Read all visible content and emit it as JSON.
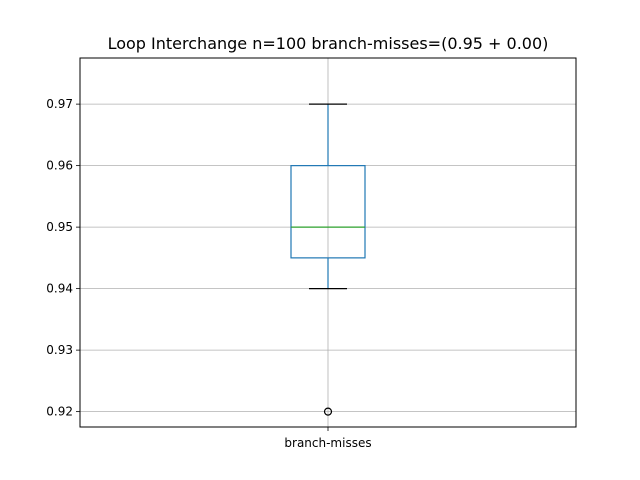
{
  "chart_data": {
    "type": "box",
    "title": "Loop Interchange n=100  branch-misses=(0.95 + 0.00)",
    "xlabel": "",
    "ylabel": "",
    "categories": [
      "branch-misses"
    ],
    "ylim": [
      0.9175,
      0.9775
    ],
    "yticks": [
      0.92,
      0.93,
      0.94,
      0.95,
      0.96,
      0.97
    ],
    "ytick_labels": [
      "0.92",
      "0.93",
      "0.94",
      "0.95",
      "0.96",
      "0.97"
    ],
    "grid": true,
    "legend": "none",
    "boxes": [
      {
        "name": "branch-misses",
        "whisker_low": 0.94,
        "q1": 0.945,
        "median": 0.95,
        "q3": 0.96,
        "whisker_high": 0.97,
        "outliers": [
          0.92
        ]
      }
    ],
    "colors": {
      "box": "#1f77b4",
      "median": "#2ca02c",
      "whisker_cap": "#000000",
      "grid": "#b0b0b0",
      "outlier": "#000000"
    }
  }
}
